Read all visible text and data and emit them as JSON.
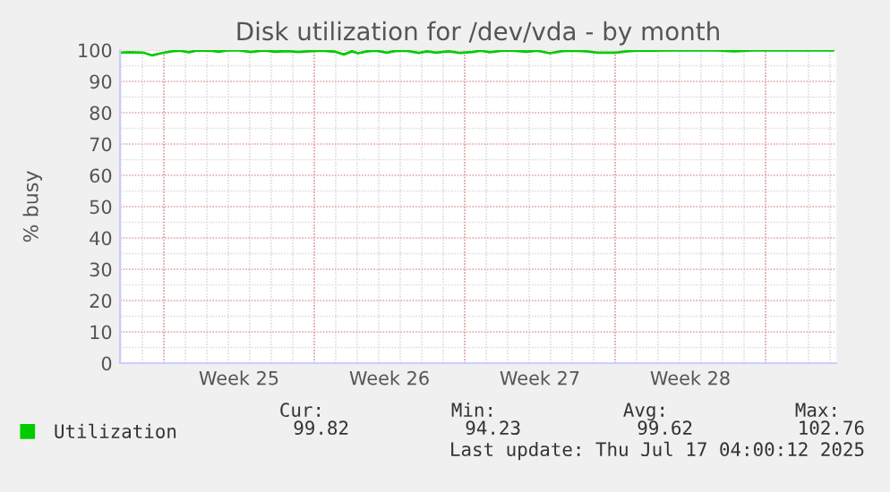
{
  "chart_data": {
    "type": "line",
    "title": "Disk utilization for /dev/vda - by month",
    "ylabel": "% busy",
    "x": [
      "2025-06-13T23:00",
      "2025-06-14T09:00",
      "2025-06-15T01:00",
      "2025-06-15T11:00",
      "2025-06-15T21:00",
      "2025-06-16T09:00",
      "2025-06-16T18:00",
      "2025-06-17T04:00",
      "2025-06-17T13:00",
      "2025-06-18T04:00",
      "2025-06-18T13:00",
      "2025-06-18T23:00",
      "2025-06-19T13:00",
      "2025-06-20T01:00",
      "2025-06-20T16:00",
      "2025-06-21T04:00",
      "2025-06-21T18:00",
      "2025-06-22T06:00",
      "2025-06-22T21:00",
      "2025-06-23T09:00",
      "2025-06-23T23:00",
      "2025-06-24T09:00",
      "2025-06-24T18:00",
      "2025-06-25T01:00",
      "2025-06-25T11:00",
      "2025-06-25T21:00",
      "2025-06-26T09:00",
      "2025-06-26T18:00",
      "2025-06-27T06:00",
      "2025-06-27T21:00",
      "2025-06-28T06:00",
      "2025-06-28T16:00",
      "2025-06-29T06:00",
      "2025-06-29T18:00",
      "2025-06-30T09:00",
      "2025-06-30T18:00",
      "2025-07-01T04:00",
      "2025-07-01T18:00",
      "2025-07-02T06:00",
      "2025-07-02T21:00",
      "2025-07-03T09:00",
      "2025-07-03T23:00",
      "2025-07-04T13:00",
      "2025-07-05T01:00",
      "2025-07-05T16:00",
      "2025-07-06T04:00",
      "2025-07-07T01:00",
      "2025-07-07T13:00",
      "2025-07-08T04:00",
      "2025-07-08T16:00",
      "2025-07-09T13:00",
      "2025-07-10T09:00",
      "2025-07-11T18:00",
      "2025-07-12T13:00",
      "2025-07-13T09:00",
      "2025-07-14T13:00",
      "2025-07-15T21:00",
      "2025-07-17T04:00"
    ],
    "series": [
      {
        "name": "Utilization",
        "color": "#00cc00",
        "values": [
          99.2,
          99.3,
          99.2,
          98.3,
          99.0,
          99.6,
          99.8,
          99.3,
          99.9,
          99.8,
          99.5,
          99.9,
          99.9,
          99.4,
          99.9,
          99.5,
          99.7,
          99.4,
          99.7,
          99.8,
          99.5,
          98.6,
          99.6,
          99.0,
          99.6,
          99.8,
          99.2,
          99.7,
          99.8,
          99.1,
          99.6,
          99.2,
          99.6,
          99.1,
          99.4,
          99.8,
          99.3,
          99.8,
          99.8,
          99.5,
          99.8,
          99.0,
          99.7,
          99.8,
          99.6,
          99.2,
          99.2,
          99.6,
          99.9,
          99.8,
          99.9,
          99.9,
          99.9,
          99.6,
          99.9,
          99.9,
          99.9,
          99.9
        ]
      }
    ],
    "xlim": [
      "2025-06-13T23:00",
      "2025-07-17T07:00"
    ],
    "xticks": [
      {
        "value": "2025-06-16T00:00",
        "label": null
      },
      {
        "value": "2025-06-19T12:00",
        "label": "Week 25"
      },
      {
        "value": "2025-06-23T00:00",
        "label": null
      },
      {
        "value": "2025-06-26T12:00",
        "label": "Week 26"
      },
      {
        "value": "2025-06-30T00:00",
        "label": null
      },
      {
        "value": "2025-07-03T12:00",
        "label": "Week 27"
      },
      {
        "value": "2025-07-07T00:00",
        "label": null
      },
      {
        "value": "2025-07-10T12:00",
        "label": "Week 28"
      },
      {
        "value": "2025-07-14T00:00",
        "label": null
      }
    ],
    "ylim": [
      0,
      100
    ],
    "yticks": [
      0,
      10,
      20,
      30,
      40,
      50,
      60,
      70,
      80,
      90,
      100
    ],
    "grid": true,
    "legend": "bottom left",
    "marker": "none",
    "line_style": "solid",
    "annotations": [
      "Cur:",
      "Min:",
      "Avg:",
      "Max:",
      "99.82",
      "94.23",
      "99.62",
      "102.76",
      "Last update: Thu Jul 17 04:00:12 2025"
    ]
  }
}
